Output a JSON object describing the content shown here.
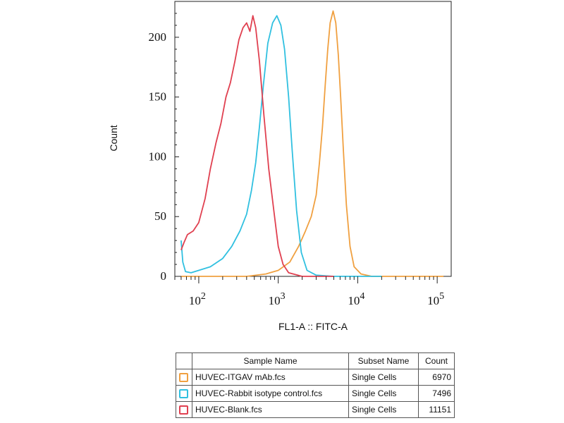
{
  "chart_data": {
    "type": "line",
    "xlabel": "FL1-A :: FITC-A",
    "ylabel": "Count",
    "xscale": "log",
    "xlim": [
      50,
      150000
    ],
    "ylim": [
      0,
      230
    ],
    "xticks": [
      {
        "base": "10",
        "exp": "2"
      },
      {
        "base": "10",
        "exp": "3"
      },
      {
        "base": "10",
        "exp": "4"
      },
      {
        "base": "10",
        "exp": "5"
      }
    ],
    "yticks": [
      0,
      50,
      100,
      150,
      200
    ],
    "grid": false,
    "series": [
      {
        "name": "HUVEC-ITGAV mAb.fcs",
        "color": "#f0a040",
        "points": [
          [
            60,
            0
          ],
          [
            400,
            0
          ],
          [
            700,
            2
          ],
          [
            1000,
            5
          ],
          [
            1400,
            12
          ],
          [
            1800,
            25
          ],
          [
            2200,
            38
          ],
          [
            2600,
            50
          ],
          [
            3000,
            68
          ],
          [
            3300,
            95
          ],
          [
            3600,
            125
          ],
          [
            3900,
            160
          ],
          [
            4200,
            190
          ],
          [
            4500,
            212
          ],
          [
            4900,
            222
          ],
          [
            5300,
            212
          ],
          [
            5700,
            185
          ],
          [
            6100,
            150
          ],
          [
            6600,
            105
          ],
          [
            7200,
            60
          ],
          [
            8000,
            25
          ],
          [
            9000,
            8
          ],
          [
            11000,
            2
          ],
          [
            15000,
            0
          ],
          [
            120000,
            0
          ]
        ]
      },
      {
        "name": "HUVEC-Rabbit isotype control.fcs",
        "color": "#30c0e0",
        "points": [
          [
            60,
            30
          ],
          [
            63,
            12
          ],
          [
            68,
            4
          ],
          [
            80,
            3
          ],
          [
            100,
            5
          ],
          [
            140,
            8
          ],
          [
            200,
            15
          ],
          [
            260,
            25
          ],
          [
            330,
            38
          ],
          [
            400,
            52
          ],
          [
            460,
            72
          ],
          [
            520,
            95
          ],
          [
            580,
            125
          ],
          [
            650,
            160
          ],
          [
            740,
            195
          ],
          [
            850,
            212
          ],
          [
            960,
            218
          ],
          [
            1080,
            210
          ],
          [
            1200,
            190
          ],
          [
            1350,
            150
          ],
          [
            1500,
            105
          ],
          [
            1700,
            55
          ],
          [
            1950,
            20
          ],
          [
            2300,
            5
          ],
          [
            3000,
            1
          ],
          [
            5000,
            0
          ],
          [
            20000,
            0
          ]
        ]
      },
      {
        "name": "HUVEC-Blank.fcs",
        "color": "#e04050",
        "points": [
          [
            60,
            22
          ],
          [
            65,
            28
          ],
          [
            72,
            35
          ],
          [
            85,
            38
          ],
          [
            100,
            45
          ],
          [
            120,
            65
          ],
          [
            140,
            90
          ],
          [
            165,
            112
          ],
          [
            190,
            128
          ],
          [
            220,
            150
          ],
          [
            250,
            162
          ],
          [
            285,
            180
          ],
          [
            320,
            198
          ],
          [
            360,
            208
          ],
          [
            400,
            212
          ],
          [
            440,
            205
          ],
          [
            480,
            218
          ],
          [
            520,
            208
          ],
          [
            580,
            180
          ],
          [
            660,
            135
          ],
          [
            760,
            90
          ],
          [
            880,
            55
          ],
          [
            1000,
            25
          ],
          [
            1150,
            10
          ],
          [
            1350,
            3
          ],
          [
            2000,
            0
          ],
          [
            5000,
            0
          ]
        ]
      }
    ]
  },
  "legend_table": {
    "headers": [
      "Sample Name",
      "Subset Name",
      "Count"
    ],
    "rows": [
      {
        "color": "#f0a040",
        "sample": "HUVEC-ITGAV mAb.fcs",
        "subset": "Single Cells",
        "count": "6970"
      },
      {
        "color": "#30c0e0",
        "sample": "HUVEC-Rabbit isotype control.fcs",
        "subset": "Single Cells",
        "count": "7496"
      },
      {
        "color": "#e04050",
        "sample": "HUVEC-Blank.fcs",
        "subset": "Single Cells",
        "count": "11151"
      }
    ]
  }
}
